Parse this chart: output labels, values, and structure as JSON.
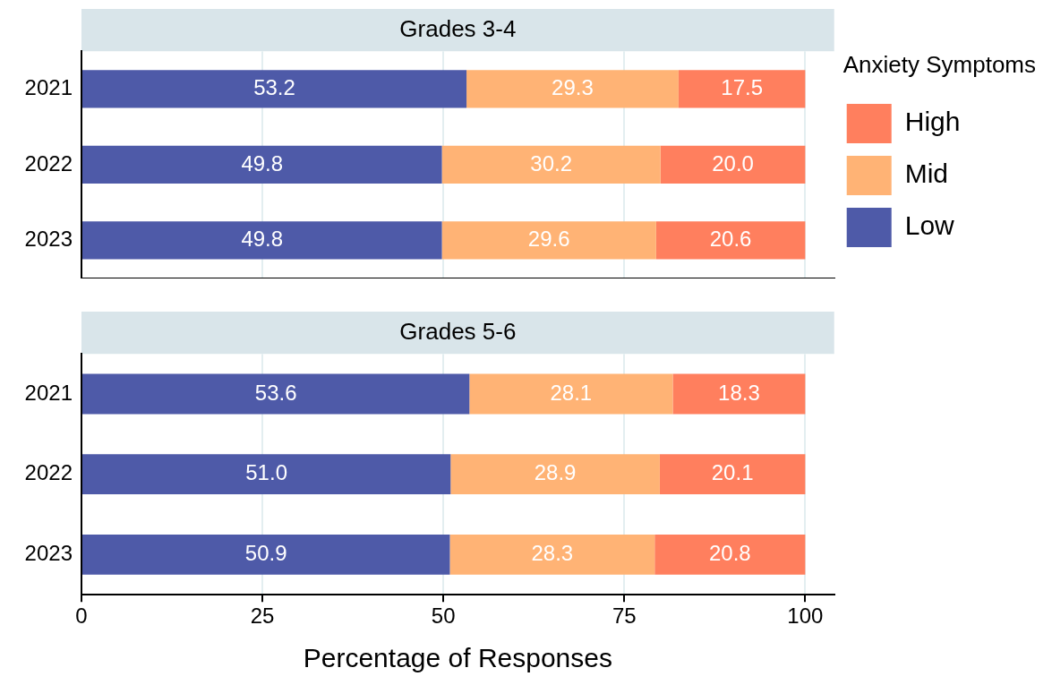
{
  "chart_data": [
    {
      "type": "bar",
      "orientation": "horizontal",
      "stacked": true,
      "title": "Grades 3-4",
      "categories": [
        "2021",
        "2022",
        "2023"
      ],
      "xlim": [
        0,
        104
      ],
      "xticks": [
        0,
        25,
        50,
        75,
        100
      ],
      "grid": "x",
      "tick_labels": "y",
      "legend": "right",
      "legend_title": "Anxiety Symptoms",
      "series": [
        {
          "name": "Low",
          "color": "#4e5aa8",
          "values": [
            53.2,
            49.8,
            49.8
          ],
          "value_labels": [
            "53.2",
            "49.8",
            "49.8"
          ]
        },
        {
          "name": "Mid",
          "color": "#ffb375",
          "values": [
            29.3,
            30.2,
            29.6
          ],
          "value_labels": [
            "29.3",
            "30.2",
            "29.6"
          ]
        },
        {
          "name": "High",
          "color": "#ff7f5e",
          "values": [
            17.5,
            20.0,
            20.6
          ],
          "value_labels": [
            "17.5",
            "20.0",
            "20.6"
          ]
        }
      ]
    },
    {
      "type": "bar",
      "orientation": "horizontal",
      "stacked": true,
      "title": "Grades 5-6",
      "categories": [
        "2021",
        "2022",
        "2023"
      ],
      "xlim": [
        0,
        104
      ],
      "xticks": [
        0,
        25,
        50,
        75,
        100
      ],
      "grid": "x",
      "xlabel": "Percentage of Responses",
      "series": [
        {
          "color": "#4e5aa8",
          "values": [
            53.6,
            51.0,
            50.9
          ],
          "value_labels": [
            "53.6",
            "51.0",
            "50.9"
          ]
        },
        {
          "color": "#ffb375",
          "values": [
            28.1,
            28.9,
            28.3
          ],
          "value_labels": [
            "28.1",
            "28.9",
            "28.3"
          ]
        },
        {
          "color": "#ff7f5e",
          "values": [
            18.3,
            20.1,
            20.8
          ],
          "value_labels": [
            "18.3",
            "20.1",
            "20.8"
          ]
        }
      ]
    }
  ]
}
